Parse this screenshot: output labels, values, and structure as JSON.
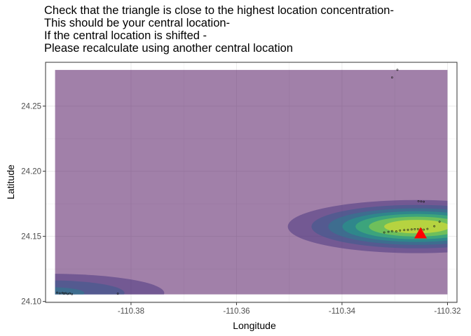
{
  "chart_data": {
    "type": "heatmap",
    "title_lines": [
      "Check that the triangle is close to the highest location concentration-",
      "This should be your central location-",
      "If the central location is shifted -",
      "Please recalculate using another central location"
    ],
    "xlabel": "Longitude",
    "ylabel": "Latitude",
    "xlim": [
      -110.3962,
      -110.3182
    ],
    "ylim": [
      24.0993,
      24.2836
    ],
    "x_ticks": [
      -110.38,
      -110.36,
      -110.34,
      -110.32
    ],
    "x_tick_labels": [
      "-110.38",
      "-110.36",
      "-110.34",
      "-110.32"
    ],
    "y_ticks": [
      24.1,
      24.15,
      24.2,
      24.25
    ],
    "y_tick_labels": [
      "24.10",
      "24.15",
      "24.20",
      "24.25"
    ],
    "grid": true,
    "density_extent": {
      "x": [
        -110.3944,
        -110.32
      ],
      "y": [
        24.1054,
        24.2778
      ]
    },
    "density_fill_opacity": 0.5,
    "density_level_colors": [
      "#440154",
      "#46327e",
      "#365c8d",
      "#277f8e",
      "#1fa187",
      "#4ac16d",
      "#a0da39",
      "#fde725"
    ],
    "density_peaks": [
      {
        "x": -110.3258,
        "y": 24.1575,
        "sx": 0.012,
        "sy": 0.01,
        "weight": 1.0
      },
      {
        "x": -110.3955,
        "y": 24.1065,
        "sx": 0.014,
        "sy": 0.0095,
        "weight": 0.42
      }
    ],
    "points": [
      [
        -110.3295,
        24.2778
      ],
      [
        -110.3305,
        24.272
      ],
      [
        -110.3255,
        24.177
      ],
      [
        -110.325,
        24.1768
      ],
      [
        -110.3245,
        24.1766
      ],
      [
        -110.332,
        24.153
      ],
      [
        -110.3312,
        24.1535
      ],
      [
        -110.3305,
        24.154
      ],
      [
        -110.3297,
        24.1538
      ],
      [
        -110.329,
        24.1545
      ],
      [
        -110.3282,
        24.1548
      ],
      [
        -110.3275,
        24.155
      ],
      [
        -110.3268,
        24.1553
      ],
      [
        -110.3262,
        24.1555
      ],
      [
        -110.3256,
        24.1556
      ],
      [
        -110.325,
        24.1554
      ],
      [
        -110.3245,
        24.1552
      ],
      [
        -110.3238,
        24.1557
      ],
      [
        -110.3225,
        24.1578
      ],
      [
        -110.3215,
        24.1612
      ],
      [
        -110.394,
        24.1068
      ],
      [
        -110.3935,
        24.1063
      ],
      [
        -110.393,
        24.1066
      ],
      [
        -110.3927,
        24.106
      ],
      [
        -110.3924,
        24.1064
      ],
      [
        -110.392,
        24.1058
      ],
      [
        -110.3916,
        24.1062
      ],
      [
        -110.3912,
        24.1057
      ],
      [
        -110.3825,
        24.106
      ]
    ],
    "central_location": {
      "x": -110.3251,
      "y": 24.1525,
      "color": "#ff0000",
      "marker": "triangle"
    }
  }
}
